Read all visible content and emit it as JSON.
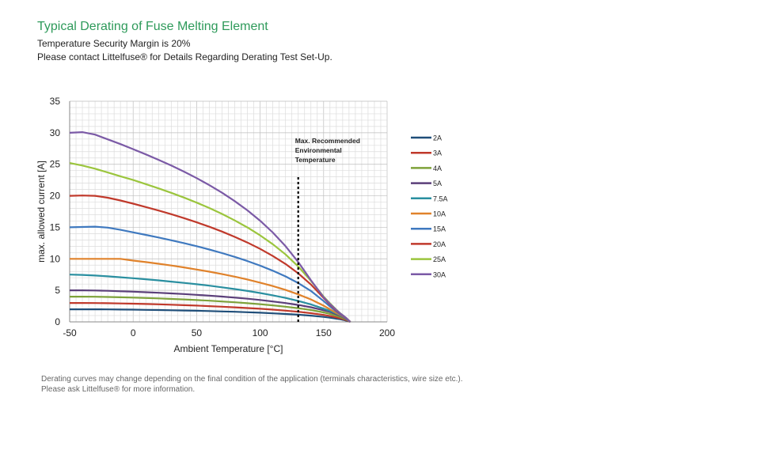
{
  "header": {
    "title": "Typical Derating of Fuse Melting Element",
    "line1": "Temperature Security Margin is 20%",
    "line2": "Please contact Littelfuse® for Details Regarding Derating Test Set-Up."
  },
  "footer": {
    "line1": "Derating curves may change depending on the final condition of the application (terminals characteristics, wire size etc.).",
    "line2": "Please ask Littelfuse® for more information."
  },
  "chart_data": {
    "type": "line",
    "title": "",
    "xlabel": "Ambient Temperature [°C]",
    "ylabel": "max. allowed current [A]",
    "xlim": [
      -50,
      200
    ],
    "ylim": [
      0,
      35
    ],
    "xticks": [
      -50,
      0,
      50,
      100,
      150,
      200
    ],
    "yticks": [
      0,
      5,
      10,
      15,
      20,
      25,
      30,
      35
    ],
    "grid": true,
    "legend_position": "right",
    "annotation": {
      "x": 130,
      "lines": [
        "Max. Recommended",
        "Environmental",
        "Temperature"
      ]
    },
    "x": [
      -50,
      -40,
      -30,
      -20,
      -10,
      0,
      10,
      20,
      30,
      40,
      50,
      60,
      70,
      80,
      90,
      100,
      110,
      120,
      130,
      140,
      150,
      155,
      160,
      163,
      166,
      168,
      170,
      171
    ],
    "series": [
      {
        "name": "2A",
        "color": "#1f4e79",
        "values": [
          2.0,
          2.0,
          2.0,
          1.98,
          1.96,
          1.94,
          1.91,
          1.88,
          1.85,
          1.81,
          1.77,
          1.72,
          1.66,
          1.6,
          1.53,
          1.45,
          1.36,
          1.26,
          1.14,
          0.99,
          0.79,
          0.67,
          0.52,
          0.42,
          0.29,
          0.19,
          0.06,
          0.0
        ]
      },
      {
        "name": "3A",
        "color": "#c0392b",
        "values": [
          3.0,
          3.0,
          2.99,
          2.96,
          2.92,
          2.88,
          2.83,
          2.78,
          2.72,
          2.65,
          2.58,
          2.5,
          2.41,
          2.31,
          2.2,
          2.08,
          1.94,
          1.78,
          1.6,
          1.38,
          1.1,
          0.93,
          0.72,
          0.57,
          0.4,
          0.26,
          0.08,
          0.0
        ]
      },
      {
        "name": "4A",
        "color": "#7ea23a",
        "values": [
          4.0,
          4.0,
          3.99,
          3.95,
          3.9,
          3.85,
          3.79,
          3.72,
          3.64,
          3.56,
          3.46,
          3.36,
          3.24,
          3.11,
          2.96,
          2.8,
          2.62,
          2.41,
          2.17,
          1.88,
          1.5,
          1.27,
          0.98,
          0.78,
          0.54,
          0.36,
          0.11,
          0.0
        ]
      },
      {
        "name": "5A",
        "color": "#5b3f7a",
        "values": [
          5.0,
          5.0,
          4.98,
          4.93,
          4.86,
          4.79,
          4.71,
          4.62,
          4.52,
          4.41,
          4.29,
          4.16,
          4.01,
          3.85,
          3.67,
          3.47,
          3.24,
          2.98,
          2.68,
          2.32,
          1.85,
          1.57,
          1.21,
          0.96,
          0.67,
          0.44,
          0.14,
          0.0
        ]
      },
      {
        "name": "7.5A",
        "color": "#2a8fa0",
        "values": [
          7.5,
          7.45,
          7.35,
          7.22,
          7.07,
          6.92,
          6.76,
          6.58,
          6.39,
          6.19,
          5.97,
          5.74,
          5.48,
          5.21,
          4.91,
          4.58,
          4.21,
          3.8,
          3.32,
          2.77,
          2.1,
          1.75,
          1.34,
          1.06,
          0.74,
          0.49,
          0.15,
          0.0
        ]
      },
      {
        "name": "10A",
        "color": "#e0822b",
        "values": [
          10.0,
          10.0,
          10.0,
          10.0,
          10.0,
          9.72,
          9.48,
          9.22,
          8.94,
          8.64,
          8.31,
          7.96,
          7.58,
          7.17,
          6.72,
          6.22,
          5.68,
          5.07,
          4.37,
          3.56,
          2.57,
          2.0,
          1.42,
          1.1,
          0.76,
          0.5,
          0.16,
          0.0
        ]
      },
      {
        "name": "15A",
        "color": "#3f79bf",
        "values": [
          15.0,
          15.05,
          15.1,
          14.95,
          14.6,
          14.2,
          13.8,
          13.39,
          12.95,
          12.49,
          12.0,
          11.48,
          10.92,
          10.31,
          9.65,
          8.92,
          8.12,
          7.21,
          6.16,
          4.9,
          3.3,
          2.45,
          1.65,
          1.2,
          0.8,
          0.5,
          0.16,
          0.0
        ]
      },
      {
        "name": "20A",
        "color": "#c0392b",
        "values": [
          20.0,
          20.05,
          20.0,
          19.7,
          19.25,
          18.75,
          18.22,
          17.66,
          17.08,
          16.46,
          15.8,
          15.09,
          14.32,
          13.49,
          12.58,
          11.58,
          10.45,
          9.18,
          7.7,
          5.92,
          3.8,
          2.75,
          1.8,
          1.3,
          0.85,
          0.55,
          0.17,
          0.0
        ]
      },
      {
        "name": "25A",
        "color": "#9bc53d",
        "values": [
          25.2,
          24.8,
          24.3,
          23.7,
          23.1,
          22.5,
          21.85,
          21.18,
          20.47,
          19.72,
          18.92,
          18.06,
          17.12,
          16.1,
          14.98,
          13.73,
          12.32,
          10.7,
          8.8,
          6.5,
          4.0,
          2.95,
          1.95,
          1.38,
          0.9,
          0.58,
          0.18,
          0.0
        ]
      },
      {
        "name": "30A",
        "color": "#7b5aa6",
        "values": [
          30.0,
          30.1,
          29.7,
          28.95,
          28.2,
          27.4,
          26.57,
          25.71,
          24.8,
          23.84,
          22.81,
          21.69,
          20.48,
          19.15,
          17.69,
          16.05,
          14.18,
          12.0,
          9.5,
          6.6,
          3.9,
          2.85,
          1.9,
          1.35,
          0.9,
          0.58,
          0.18,
          0.0
        ]
      }
    ]
  }
}
